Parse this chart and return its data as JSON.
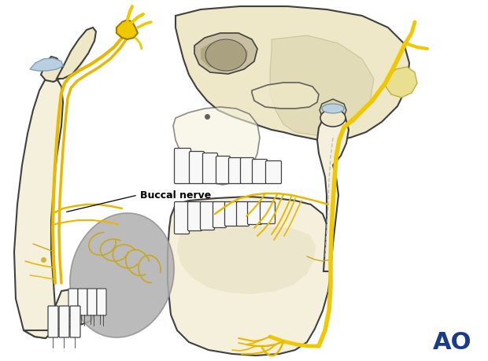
{
  "background_color": "#ffffff",
  "ao_text": "AO",
  "ao_color": "#1a3a8a",
  "ao_fontsize": 22,
  "buccal_nerve_label": "Buccal nerve",
  "bone_color": "#eee8c8",
  "bone_light": "#f5f0dc",
  "bone_shadow": "#d8d0a8",
  "bone_edge": "#404040",
  "nerve_yellow": "#e8b800",
  "nerve_bright": "#f0c800",
  "nerve_light": "#d4c060",
  "tooth_color": "#f8f8f8",
  "orbit_fill": "#c8c0a0",
  "orbit_inner": "#b0a880",
  "disc_blue": "#b8d0e0",
  "fat_gray": "#b0b0b0",
  "fat_edge": "#909090",
  "tmj_disc_color": "#c8d8e8",
  "nerve_thin": "#c8a820",
  "dashed_color": "#c0c0c0"
}
